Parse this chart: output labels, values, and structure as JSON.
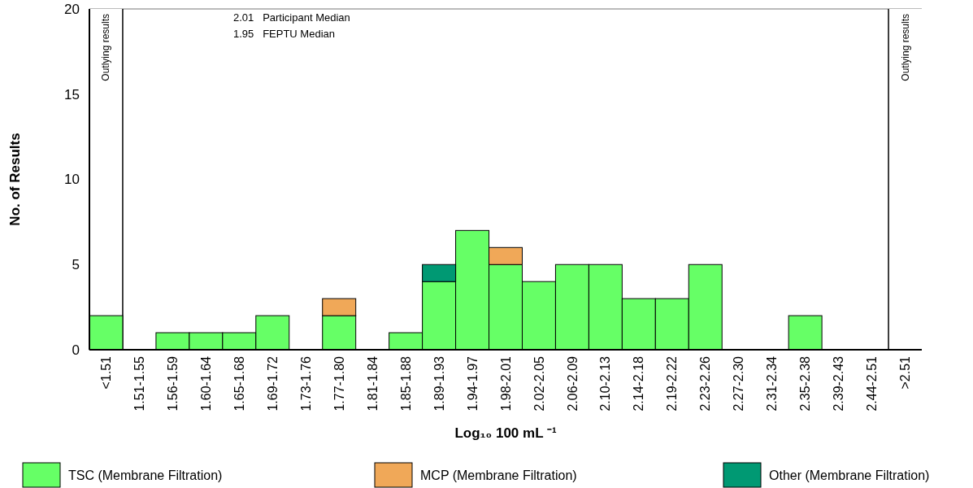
{
  "chart_data": {
    "type": "bar",
    "stacked": true,
    "xlabel": "Log₁₀ 100 mL ⁻¹",
    "ylabel": "No. of Results",
    "categories": [
      "<1.51",
      "1.51-1.55",
      "1.56-1.59",
      "1.60-1.64",
      "1.65-1.68",
      "1.69-1.72",
      "1.73-1.76",
      "1.77-1.80",
      "1.81-1.84",
      "1.85-1.88",
      "1.89-1.93",
      "1.94-1.97",
      "1.98-2.01",
      "2.02-2.05",
      "2.06-2.09",
      "2.10-2.13",
      "2.14-2.18",
      "2.19-2.22",
      "2.23-2.26",
      "2.27-2.30",
      "2.31-2.34",
      "2.35-2.38",
      "2.39-2.43",
      "2.44-2.51",
      ">2.51"
    ],
    "series": [
      {
        "name": "TSC (Membrane Filtration)",
        "color": "#66ff66",
        "values": [
          2,
          0,
          1,
          1,
          1,
          2,
          0,
          2,
          0,
          1,
          4,
          7,
          5,
          4,
          5,
          5,
          3,
          3,
          5,
          0,
          0,
          2,
          0,
          0,
          0
        ]
      },
      {
        "name": "MCP (Membrane Filtration)",
        "color": "#f0a858",
        "values": [
          0,
          0,
          0,
          0,
          0,
          0,
          0,
          1,
          0,
          0,
          0,
          0,
          1,
          0,
          0,
          0,
          0,
          0,
          0,
          0,
          0,
          0,
          0,
          0,
          0
        ]
      },
      {
        "name": "Other (Membrane Filtration)",
        "color": "#009973",
        "values": [
          0,
          0,
          0,
          0,
          0,
          0,
          0,
          0,
          0,
          0,
          1,
          0,
          0,
          0,
          0,
          0,
          0,
          0,
          0,
          0,
          0,
          0,
          0,
          0,
          0
        ]
      }
    ],
    "ylim": [
      0,
      20
    ],
    "yticks": [
      0,
      5,
      10,
      15,
      20
    ],
    "grid": false,
    "legend": "bottom",
    "bands": [
      {
        "axis": "x",
        "from": "<1.51",
        "to": "<1.51",
        "label": "Outlying results",
        "color": "#ffffff"
      },
      {
        "axis": "x",
        "from": ">2.51",
        "to": ">2.51",
        "label": "Outlying results",
        "color": "#ffffff"
      }
    ],
    "annotations": [
      "2.01   Participant Median",
      "1.95   FEPTU Median"
    ]
  }
}
